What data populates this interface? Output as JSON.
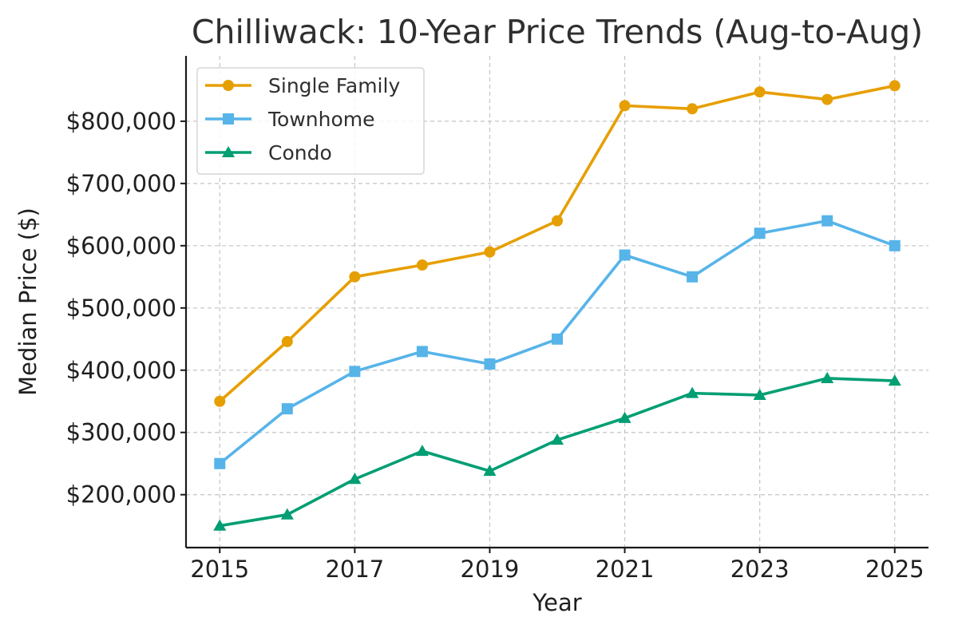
{
  "chart_data": {
    "type": "line",
    "title": "Chilliwack: 10-Year Price Trends (Aug-to-Aug)",
    "xlabel": "Year",
    "ylabel": "Median Price ($)",
    "x": [
      2015,
      2016,
      2017,
      2018,
      2019,
      2020,
      2021,
      2022,
      2023,
      2024,
      2025
    ],
    "xlim": [
      2014.5,
      2025.5
    ],
    "ylim": [
      115000,
      905000
    ],
    "xticks": [
      2015,
      2017,
      2019,
      2021,
      2023,
      2025
    ],
    "xtick_labels": [
      "2015",
      "2017",
      "2019",
      "2021",
      "2023",
      "2025"
    ],
    "yticks": [
      200000,
      300000,
      400000,
      500000,
      600000,
      700000,
      800000
    ],
    "ytick_labels": [
      "$200,000",
      "$300,000",
      "$400,000",
      "$500,000",
      "$600,000",
      "$700,000",
      "$800,000"
    ],
    "grid": true,
    "legend_position": "top-left",
    "series": [
      {
        "name": "Single Family",
        "marker": "circle",
        "color": "#E69F00",
        "values": [
          350000,
          446000,
          550000,
          569000,
          590000,
          640000,
          825000,
          820000,
          847000,
          835000,
          857000
        ]
      },
      {
        "name": "Townhome",
        "marker": "square",
        "color": "#56B4E9",
        "values": [
          250000,
          338000,
          398000,
          430000,
          410000,
          450000,
          585000,
          550000,
          620000,
          640000,
          600000
        ]
      },
      {
        "name": "Condo",
        "marker": "triangle",
        "color": "#009E73",
        "values": [
          150000,
          168000,
          225000,
          270000,
          238000,
          288000,
          323000,
          363000,
          360000,
          387000,
          383000
        ]
      }
    ]
  }
}
